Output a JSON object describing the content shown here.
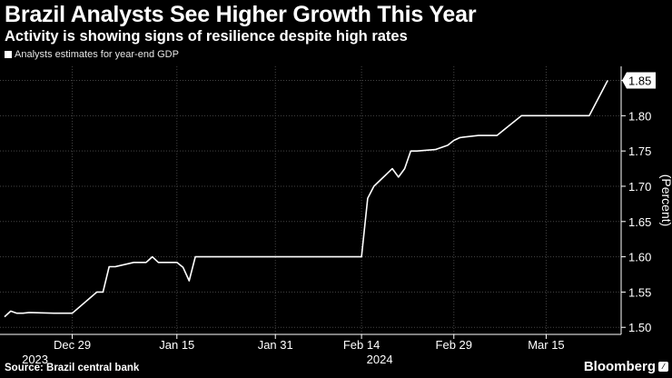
{
  "header": {
    "title": "Brazil Analysts See Higher Growth This Year",
    "subtitle": "Activity is showing signs of resilience despite high rates"
  },
  "legend": {
    "label": "Analysts estimates for year-end GDP"
  },
  "footer": {
    "source": "Source: Brazil central bank",
    "brand": "Bloomberg"
  },
  "colors": {
    "background": "#000000",
    "line": "#ffffff",
    "grid": "#444444",
    "text": "#ffffff"
  },
  "chart_data": {
    "type": "line",
    "title": "Brazil Analysts See Higher Growth This Year",
    "subtitle": "Activity is showing signs of resilience despite high rates",
    "ylabel": "(Percent)",
    "y_axis_position": "right",
    "ylim": [
      1.49,
      1.87
    ],
    "yticks": [
      1.5,
      1.55,
      1.6,
      1.65,
      1.7,
      1.75,
      1.8,
      1.85
    ],
    "ytick_labels": [
      "1.50",
      "1.55",
      "1.60",
      "1.65",
      "1.70",
      "1.75",
      "1.80"
    ],
    "last_value_label": "1.85",
    "grid": true,
    "legend_position": "top-left",
    "xlim": [
      "2023-12-18",
      "2024-03-26"
    ],
    "xticks": [
      {
        "date": "2023-12-29",
        "label": "Dec 29"
      },
      {
        "date": "2024-01-15",
        "label": "Jan 15"
      },
      {
        "date": "2024-01-31",
        "label": "Jan 31"
      },
      {
        "date": "2024-02-14",
        "label": "Feb 14"
      },
      {
        "date": "2024-02-29",
        "label": "Feb 29"
      },
      {
        "date": "2024-03-15",
        "label": "Mar 15"
      }
    ],
    "year_labels": [
      {
        "date": "2023-12-20",
        "label": "2023"
      },
      {
        "date": "2024-02-14",
        "label": "2024"
      }
    ],
    "series": [
      {
        "name": "Analysts estimates for year-end GDP",
        "x": [
          "2023-12-18",
          "2023-12-19",
          "2023-12-20",
          "2023-12-21",
          "2023-12-22",
          "2023-12-26",
          "2023-12-27",
          "2023-12-28",
          "2023-12-29",
          "2024-01-02",
          "2024-01-03",
          "2024-01-04",
          "2024-01-05",
          "2024-01-08",
          "2024-01-09",
          "2024-01-10",
          "2024-01-11",
          "2024-01-12",
          "2024-01-15",
          "2024-01-16",
          "2024-01-17",
          "2024-01-18",
          "2024-01-19",
          "2024-01-22",
          "2024-01-23",
          "2024-01-24",
          "2024-01-25",
          "2024-01-26",
          "2024-01-29",
          "2024-01-30",
          "2024-01-31",
          "2024-02-01",
          "2024-02-02",
          "2024-02-05",
          "2024-02-06",
          "2024-02-07",
          "2024-02-08",
          "2024-02-09",
          "2024-02-14",
          "2024-02-15",
          "2024-02-16",
          "2024-02-19",
          "2024-02-20",
          "2024-02-21",
          "2024-02-22",
          "2024-02-23",
          "2024-02-26",
          "2024-02-27",
          "2024-02-28",
          "2024-02-29",
          "2024-03-01",
          "2024-03-04",
          "2024-03-05",
          "2024-03-06",
          "2024-03-07",
          "2024-03-08",
          "2024-03-11",
          "2024-03-12",
          "2024-03-13",
          "2024-03-14",
          "2024-03-15",
          "2024-03-18",
          "2024-03-19",
          "2024-03-20",
          "2024-03-21",
          "2024-03-22",
          "2024-03-25"
        ],
        "values": [
          1.515,
          1.523,
          1.52,
          1.52,
          1.521,
          1.52,
          1.52,
          1.52,
          1.52,
          1.55,
          1.55,
          1.586,
          1.586,
          1.592,
          1.592,
          1.592,
          1.6,
          1.592,
          1.592,
          1.585,
          1.566,
          1.6,
          1.6,
          1.6,
          1.6,
          1.6,
          1.6,
          1.6,
          1.6,
          1.6,
          1.6,
          1.6,
          1.6,
          1.6,
          1.6,
          1.6,
          1.6,
          1.6,
          1.6,
          1.683,
          1.7,
          1.725,
          1.713,
          1.725,
          1.75,
          1.75,
          1.752,
          1.755,
          1.758,
          1.765,
          1.769,
          1.772,
          1.772,
          1.772,
          1.772,
          1.779,
          1.8,
          1.8,
          1.8,
          1.8,
          1.8,
          1.8,
          1.8,
          1.8,
          1.8,
          1.8,
          1.85
        ]
      }
    ]
  }
}
